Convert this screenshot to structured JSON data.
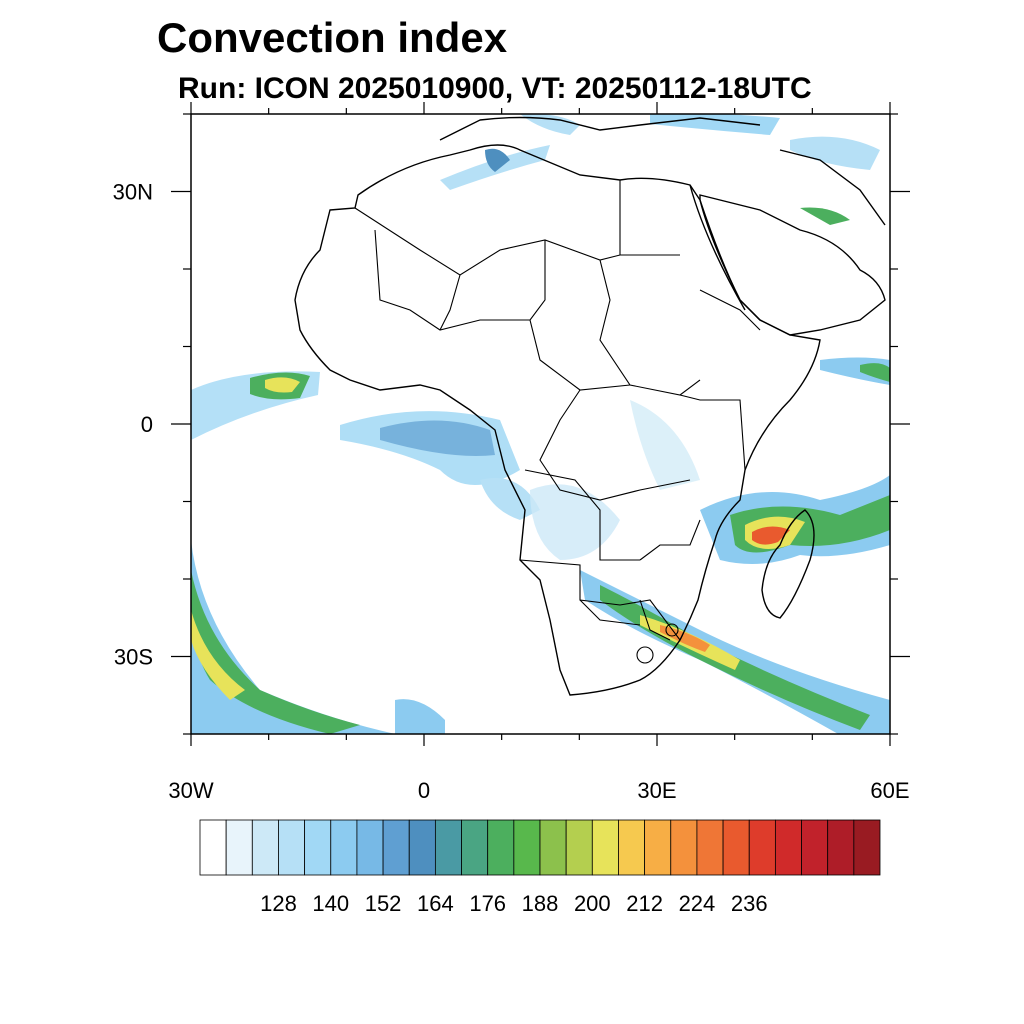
{
  "title": "Convection index",
  "subtitle": "Run: ICON 2025010900,  VT: 20250112-18UTC",
  "map": {
    "region": "Africa",
    "lon_range": [
      -30,
      60
    ],
    "lat_range": [
      -40,
      40
    ],
    "x_ticks": [
      {
        "value": -30,
        "label": "30W"
      },
      {
        "value": 0,
        "label": "0"
      },
      {
        "value": 30,
        "label": "30E"
      },
      {
        "value": 60,
        "label": "60E"
      }
    ],
    "y_ticks": [
      {
        "value": 30,
        "label": "30N"
      },
      {
        "value": 0,
        "label": "0"
      },
      {
        "value": -30,
        "label": "30S"
      }
    ]
  },
  "colorbar": {
    "labels": [
      "128",
      "140",
      "152",
      "164",
      "176",
      "188",
      "200",
      "212",
      "224",
      "236"
    ],
    "colors": [
      "#ffffff",
      "#e8f4fb",
      "#cde9f7",
      "#b6e0f6",
      "#a1d8f5",
      "#8ccbf0",
      "#77b9e6",
      "#5f9fd2",
      "#4e8fbf",
      "#4a9aa4",
      "#4aa583",
      "#4caf5e",
      "#58b84c",
      "#8cc14c",
      "#b4cf4f",
      "#e7e35a",
      "#f6c94f",
      "#f7ae45",
      "#f4913c",
      "#ef7636",
      "#e95a2e",
      "#de3c2b",
      "#d02a2a",
      "#c1222b",
      "#ae1d28",
      "#991b22"
    ]
  }
}
